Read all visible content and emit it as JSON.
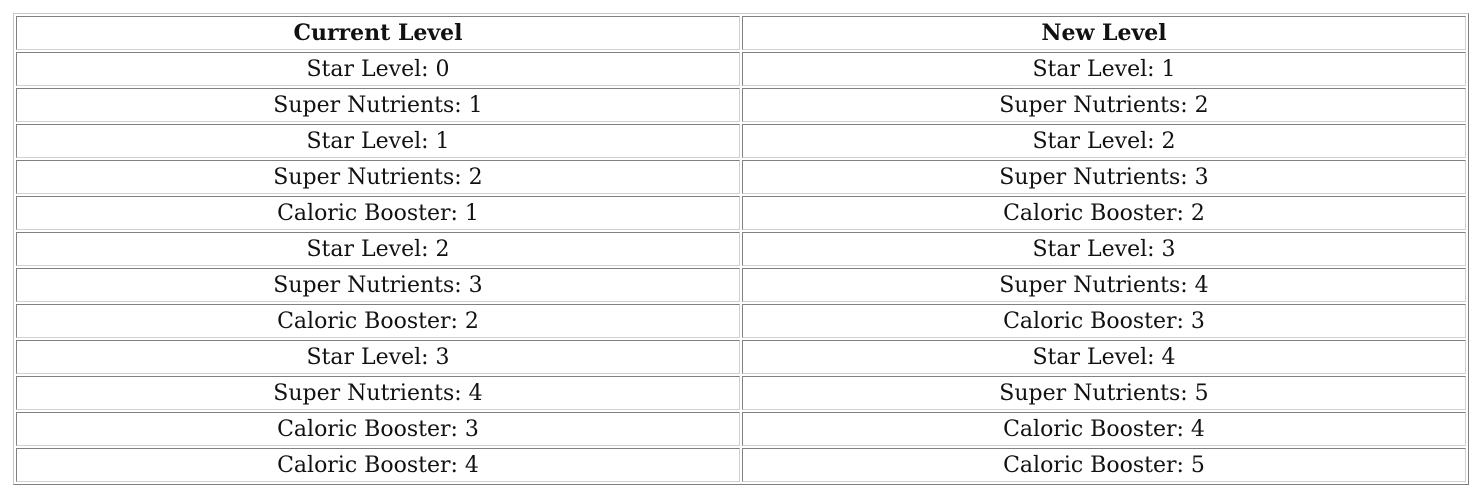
{
  "table": {
    "headers": [
      "Current Level",
      "New Level"
    ],
    "rows": [
      [
        "Star Level: 0",
        "Star Level: 1"
      ],
      [
        "Super Nutrients: 1",
        "Super Nutrients: 2"
      ],
      [
        "Star Level: 1",
        "Star Level: 2"
      ],
      [
        "Super Nutrients: 2",
        "Super Nutrients: 3"
      ],
      [
        "Caloric Booster: 1",
        "Caloric Booster: 2"
      ],
      [
        "Star Level: 2",
        "Star Level: 3"
      ],
      [
        "Super Nutrients: 3",
        "Super Nutrients: 4"
      ],
      [
        "Caloric Booster: 2",
        "Caloric Booster: 3"
      ],
      [
        "Star Level: 3",
        "Star Level: 4"
      ],
      [
        "Super Nutrients: 4",
        "Super Nutrients: 5"
      ],
      [
        "Caloric Booster: 3",
        "Caloric Booster: 4"
      ],
      [
        "Caloric Booster: 4",
        "Caloric Booster: 5"
      ]
    ]
  }
}
